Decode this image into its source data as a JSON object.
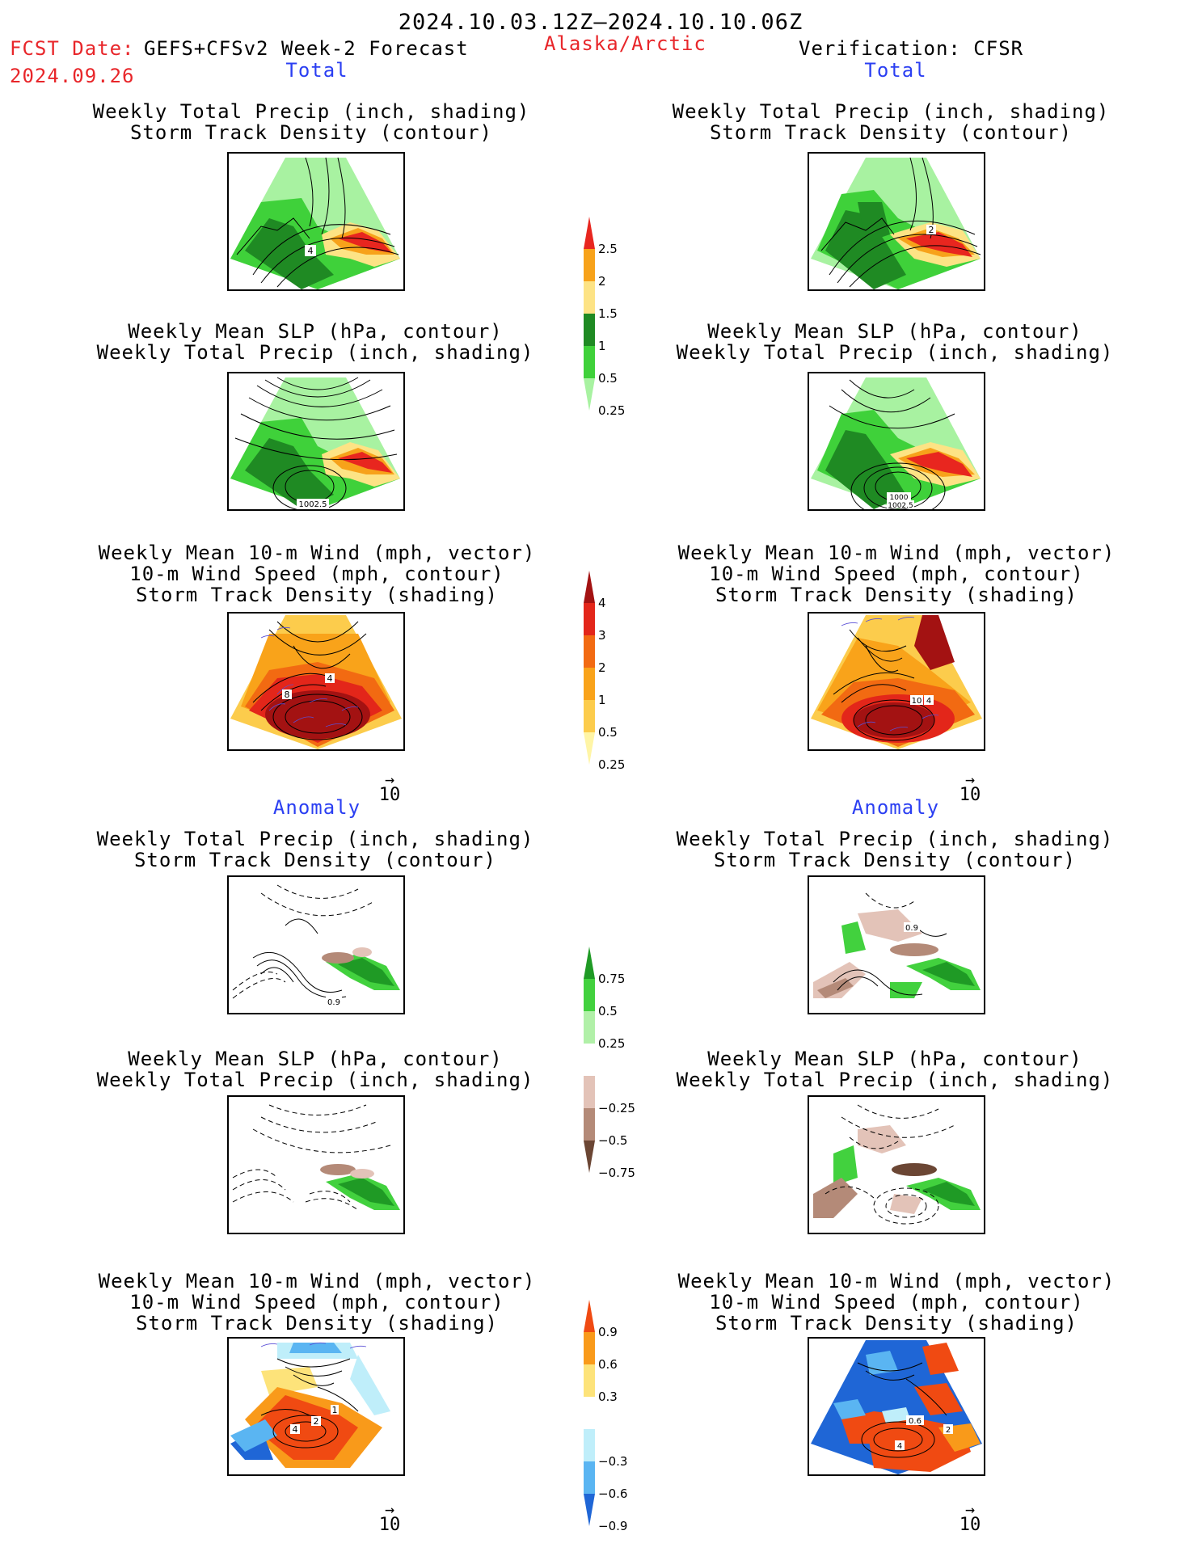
{
  "header": {
    "valid_range": "2024.10.03.12Z–2024.10.10.06Z",
    "fcst_label": "FCST Date:",
    "fcst_value": "GEFS+CFSv2 Week-2 Forecast",
    "fcst_date": "2024.09.26",
    "region": "Alaska/Arctic",
    "verification": "Verification: CFSR"
  },
  "sections": {
    "total": "Total",
    "anomaly": "Anomaly"
  },
  "titles": {
    "precip_storm": "Weekly Total Precip (inch, shading)\nStorm Track Density (contour)",
    "slp_precip": "Weekly Mean SLP (hPa, contour)\nWeekly Total Precip (inch, shading)",
    "wind_storm": "Weekly Mean 10-m Wind (mph, vector)\n10-m Wind Speed (mph, contour)\nStorm Track Density (shading)"
  },
  "panel_labels": {
    "total_left_precip": [
      "4"
    ],
    "total_left_slp": [
      "1002.5"
    ],
    "total_left_wind": [
      "8",
      "4"
    ],
    "total_right_precip": [
      "2"
    ],
    "total_right_slp": [
      "1000",
      "1002.5"
    ],
    "total_right_wind": [
      "10",
      "4"
    ],
    "anom_left_precip": [
      "0.9"
    ],
    "anom_right_precip": [
      "0.9"
    ],
    "anom_left_wind": [
      "2",
      "4",
      "1"
    ],
    "anom_right_wind": [
      "0.6",
      "4",
      "2"
    ]
  },
  "wind_reference": "10",
  "colorbars": {
    "total_precip": {
      "labels": [
        "2.5",
        "2",
        "1.5",
        "1",
        "0.5",
        "0.25"
      ],
      "colors": [
        "#e8261f",
        "#f7a21a",
        "#fde385",
        "#1f8a23",
        "#3fd13a",
        "#a8f2a1"
      ]
    },
    "total_storm": {
      "labels": [
        "4",
        "3",
        "2",
        "1",
        "0.5",
        "0.25"
      ],
      "colors": [
        "#a31212",
        "#e3261a",
        "#f26a12",
        "#f9a31a",
        "#fccc4c",
        "#fff5a6"
      ]
    },
    "anom_precip": {
      "labels": [
        "0.75",
        "0.5",
        "0.25",
        "−0.25",
        "−0.5",
        "−0.75"
      ],
      "colors": [
        "#1f9a25",
        "#42d13e",
        "#b1f0a8",
        "#ffffff",
        "#e3c3b8",
        "#b48a78",
        "#6b4634"
      ]
    },
    "anom_storm": {
      "labels": [
        "0.9",
        "0.6",
        "0.3",
        "−0.3",
        "−0.6",
        "−0.9"
      ],
      "colors": [
        "#f04a12",
        "#f99a1a",
        "#fde37a",
        "#ffffff",
        "#bfeefa",
        "#5ab5f2",
        "#1f66d6"
      ]
    }
  }
}
